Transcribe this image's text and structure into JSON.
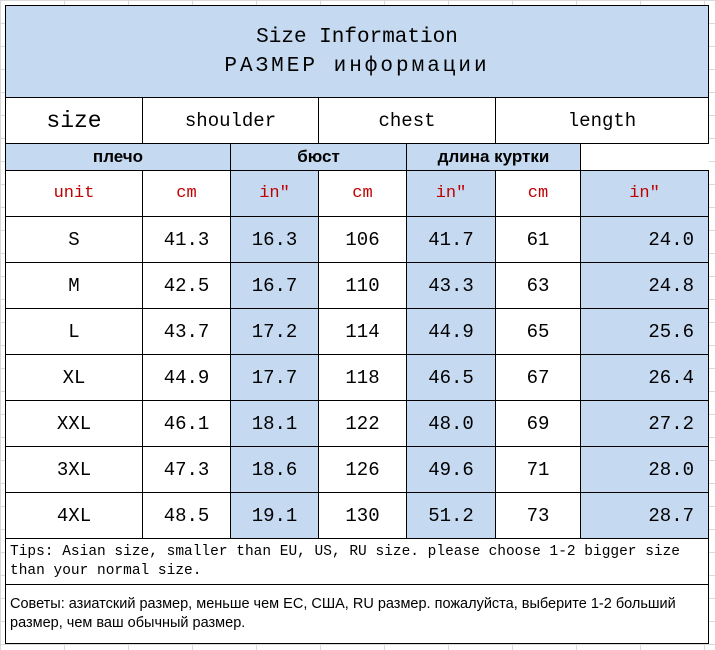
{
  "header": {
    "title": "Size Information",
    "subtitle": "РАЗМЕР информации"
  },
  "table": {
    "size_label": "size",
    "unit_label": "unit",
    "measures": [
      {
        "name": "shoulder",
        "name_ru": "плечо"
      },
      {
        "name": "chest",
        "name_ru": "бюст"
      },
      {
        "name": "length",
        "name_ru": "длина куртки"
      }
    ],
    "units": [
      "cm",
      "in″",
      "cm",
      "in″",
      "cm",
      "in″"
    ],
    "rows": [
      [
        "S",
        "41.3",
        "16.3",
        "106",
        "41.7",
        "61",
        "24.0"
      ],
      [
        "M",
        "42.5",
        "16.7",
        "110",
        "43.3",
        "63",
        "24.8"
      ],
      [
        "L",
        "43.7",
        "17.2",
        "114",
        "44.9",
        "65",
        "25.6"
      ],
      [
        "XL",
        "44.9",
        "17.7",
        "118",
        "46.5",
        "67",
        "26.4"
      ],
      [
        "XXL",
        "46.1",
        "18.1",
        "122",
        "48.0",
        "69",
        "27.2"
      ],
      [
        "3XL",
        "47.3",
        "18.6",
        "126",
        "49.6",
        "71",
        "28.0"
      ],
      [
        "4XL",
        "48.5",
        "19.1",
        "130",
        "51.2",
        "73",
        "28.7"
      ]
    ]
  },
  "tips": [
    "Tips: Asian size, smaller than EU, US, RU size. please choose 1-2 bigger size than your normal size.",
    "Советы: азиатский размер, меньше чем ЕС, США, RU размер. пожалуйста, выберите 1-2 больший размер, чем ваш обычный размер."
  ]
}
